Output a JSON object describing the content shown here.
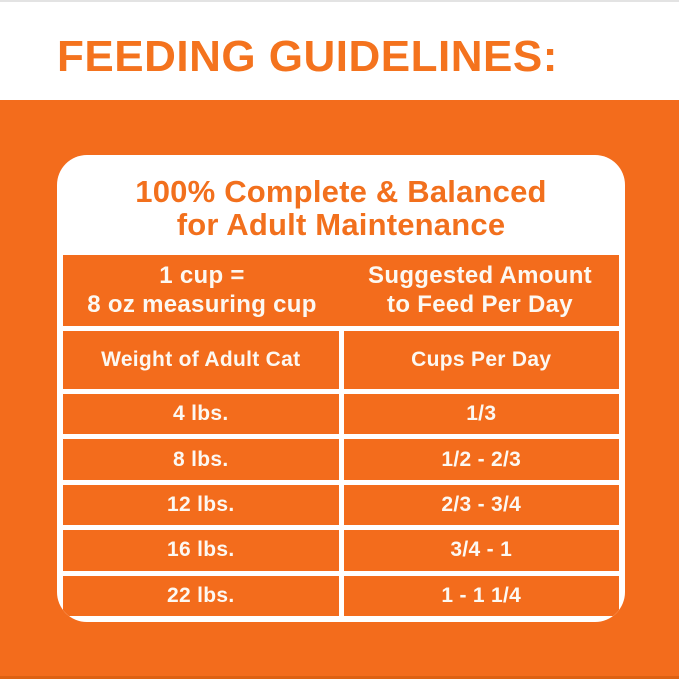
{
  "page": {
    "title": "FEEDING GUIDELINES:"
  },
  "card": {
    "title_line1": "100% Complete & Balanced",
    "title_line2": "for Adult Maintenance",
    "header": {
      "left_line1": "1 cup =",
      "left_line2": "8 oz measuring cup",
      "right_line1": "Suggested Amount",
      "right_line2": "to Feed Per Day"
    },
    "columns": [
      "Weight of Adult Cat",
      "Cups Per Day"
    ],
    "rows": [
      {
        "weight": "4 lbs.",
        "cups": "1/3"
      },
      {
        "weight": "8 lbs.",
        "cups": "1/2 - 2/3"
      },
      {
        "weight": "12 lbs.",
        "cups": "2/3 - 3/4"
      },
      {
        "weight": "16 lbs.",
        "cups": "3/4 - 1"
      },
      {
        "weight": "22 lbs.",
        "cups": "1 - 1 1/4"
      }
    ]
  },
  "colors": {
    "accent_orange": "#f36c1c",
    "title_orange": "#f4731e",
    "text_white": "#fcf8f2"
  }
}
